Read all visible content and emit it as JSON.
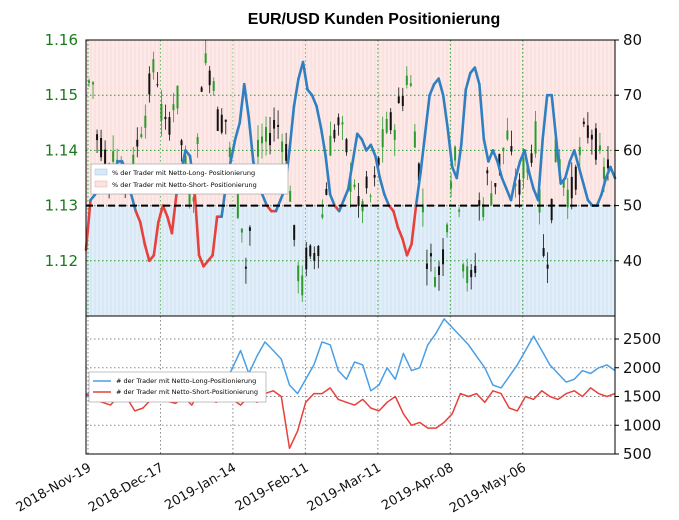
{
  "title": "EUR/USD Kunden Positionierung",
  "colors": {
    "long": "#2f7fc1",
    "long_fill": "#d8e8f6",
    "short": "#e8403a",
    "short_fill": "#fbe2e0",
    "candle_up": "#2e9a2e",
    "candle_down": "#111111",
    "grid_green": "#2e9a2e",
    "grid_gray": "#888888",
    "price_tick": "#1a7a1a",
    "line_long_bottom": "#4a9fe6",
    "line_short_bottom": "#e8403a"
  },
  "legend_top": {
    "long_label": "% der Trader mit Netto-Long- Positionierung",
    "short_label": "% der Trader mit Netto-Short- Positionierung"
  },
  "legend_bottom": {
    "long_label": "# der Trader mit Netto-Long-Positionierung",
    "short_label": "# der Trader mit Netto-Short-Positionierung"
  },
  "chart_data": [
    {
      "type": "line",
      "name": "top-panel",
      "price_axis": {
        "ticks": [
          "1.12",
          "1.13",
          "1.14",
          "1.15",
          "1.16"
        ],
        "ylim": [
          1.11,
          1.16
        ]
      },
      "pct_axis": {
        "ticks": [
          "40",
          "50",
          "60",
          "70",
          "80"
        ],
        "ylim": [
          30,
          80
        ]
      },
      "reference_line": 50,
      "x_ticks": [
        "2018-Nov-19",
        "2018-Dec-17",
        "2019-Jan-14",
        "2019-Feb-11",
        "2019-Mar-11",
        "2019-Apr-08",
        "2019-May-06"
      ],
      "pct_long": [
        42,
        51,
        52,
        54,
        56,
        53,
        55,
        58,
        58,
        56,
        52,
        49,
        47,
        43,
        40,
        41,
        47,
        50,
        48,
        45,
        52,
        56,
        60,
        59,
        53,
        41,
        39,
        40,
        41,
        48,
        48,
        54,
        58,
        62,
        65,
        72,
        66,
        58,
        54,
        52,
        50,
        49,
        49,
        51,
        53,
        60,
        68,
        73,
        76,
        71,
        70,
        68,
        64,
        59,
        52,
        50,
        49,
        51,
        53,
        58,
        63,
        62,
        60,
        61,
        59,
        55,
        52,
        50,
        49,
        46,
        44,
        41,
        43,
        50,
        56,
        63,
        70,
        72,
        73,
        70,
        64,
        57,
        55,
        61,
        71,
        74,
        75,
        72,
        62,
        58,
        60,
        58,
        55,
        53,
        51,
        55,
        58,
        60,
        56,
        53,
        51,
        62,
        70,
        70,
        62,
        54,
        55,
        58,
        60,
        57,
        54,
        51,
        50,
        50,
        52,
        55,
        57,
        55
      ]
    },
    {
      "type": "line",
      "name": "bottom-panel",
      "y_axis": {
        "ticks": [
          "500",
          "1000",
          "1500",
          "2000",
          "2500"
        ],
        "ylim": [
          500,
          2900
        ]
      },
      "x_ticks": [
        "2018-Nov-19",
        "2018-Dec-17",
        "2019-Jan-14",
        "2019-Feb-11",
        "2019-Mar-11",
        "2019-Apr-08",
        "2019-May-06"
      ],
      "series": [
        {
          "name": "# der Trader mit Netto-Long-Positionierung",
          "values": [
            1500,
            1680,
            1800,
            1780,
            1650,
            1720,
            1900,
            1850,
            1600,
            1450,
            1550,
            1700,
            1650,
            1750,
            1500,
            1650,
            1800,
            1700,
            2000,
            2300,
            1900,
            2200,
            2450,
            2300,
            2150,
            1700,
            1550,
            1800,
            2050,
            2450,
            2400,
            1950,
            1800,
            2100,
            2050,
            1600,
            1700,
            2000,
            1800,
            2250,
            1950,
            2000,
            2400,
            2600,
            2850,
            2700,
            2550,
            2400,
            2200,
            2000,
            1700,
            1650,
            1850,
            2050,
            2300,
            2550,
            2300,
            2050,
            1900,
            1750,
            1800,
            1950,
            1900,
            2000,
            2050,
            1950
          ]
        },
        {
          "name": "# der Trader mit Netto-Short-Positionierung",
          "values": [
            1550,
            1450,
            1400,
            1350,
            1500,
            1480,
            1250,
            1300,
            1450,
            1500,
            1420,
            1380,
            1500,
            1350,
            1600,
            1480,
            1400,
            1500,
            1450,
            1350,
            1500,
            1400,
            1550,
            1600,
            1500,
            600,
            900,
            1400,
            1550,
            1550,
            1650,
            1450,
            1400,
            1350,
            1450,
            1300,
            1250,
            1400,
            1500,
            1200,
            1000,
            1050,
            950,
            950,
            1050,
            1200,
            1550,
            1500,
            1550,
            1400,
            1600,
            1550,
            1300,
            1250,
            1500,
            1450,
            1600,
            1500,
            1450,
            1550,
            1600,
            1500,
            1650,
            1550,
            1500,
            1550
          ]
        }
      ]
    }
  ]
}
